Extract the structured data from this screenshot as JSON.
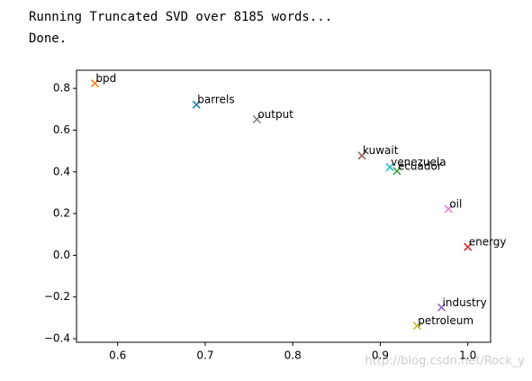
{
  "console": {
    "lines": [
      "Running Truncated SVD over 8185 words...",
      "Done."
    ]
  },
  "watermark": "http://blog.csdn.net/Rock_y",
  "chart_data": {
    "type": "scatter",
    "marker": "x",
    "xlim": [
      0.553,
      1.026
    ],
    "xticks": [
      0.6,
      0.7,
      0.8,
      0.9,
      {
        "value": 1.0,
        "label": "1.0"
      }
    ],
    "ylim": [
      -0.417,
      0.887
    ],
    "yticks": [
      {
        "value": -0.4,
        "label": "−0.4"
      },
      {
        "value": -0.2,
        "label": "−0.2"
      },
      {
        "value": 0.0,
        "label": "0.0"
      },
      0.2,
      0.4,
      0.6,
      0.8
    ],
    "series": [
      {
        "name": "barrels",
        "color": "#1f77b4",
        "x": 0.69,
        "y": 0.722
      },
      {
        "name": "bpd",
        "color": "#ff7f0e",
        "x": 0.574,
        "y": 0.824
      },
      {
        "name": "ecuador",
        "color": "#2ca02c",
        "x": 0.919,
        "y": 0.404
      },
      {
        "name": "energy",
        "color": "#d62728",
        "x": 1.0,
        "y": 0.04
      },
      {
        "name": "industry",
        "color": "#9467bd",
        "x": 0.97,
        "y": -0.25
      },
      {
        "name": "kuwait",
        "color": "#8c564b",
        "x": 0.879,
        "y": 0.478
      },
      {
        "name": "oil",
        "color": "#e377c2",
        "x": 0.978,
        "y": 0.222
      },
      {
        "name": "output",
        "color": "#7f7f7f",
        "x": 0.759,
        "y": 0.652
      },
      {
        "name": "petroleum",
        "color": "#bcbd22",
        "x": 0.942,
        "y": -0.338
      },
      {
        "name": "venezuela",
        "color": "#17becf",
        "x": 0.911,
        "y": 0.422
      }
    ]
  }
}
